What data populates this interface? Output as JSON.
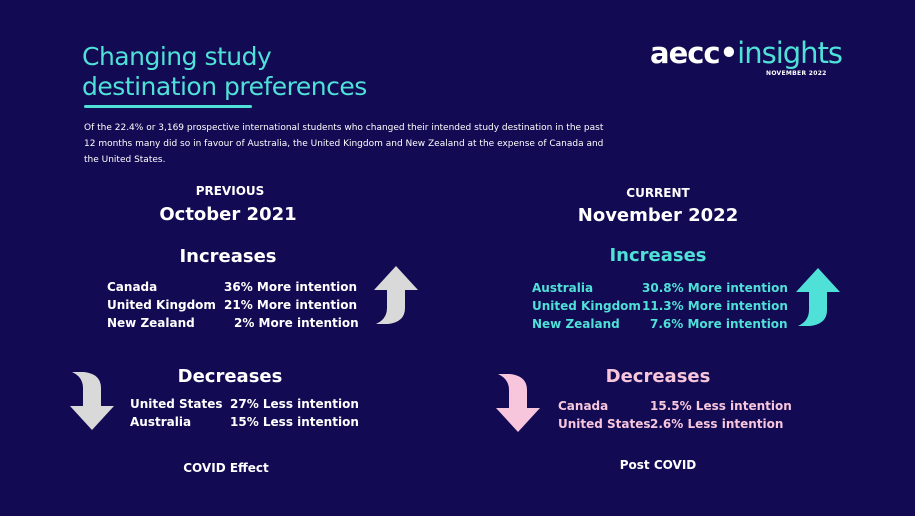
{
  "header": {
    "title_line1": "Changing study",
    "title_line2": "destination preferences",
    "intro": "Of the 22.4% or 3,169 prospective international students who changed their intended study destination in the past 12 months many did so in favour of Australia, the United Kingdom and New Zealand at the expense of Canada and the United States."
  },
  "logo": {
    "brand": "aecc",
    "product": "insights",
    "date": "NOVEMBER 2022"
  },
  "previous": {
    "label": "PREVIOUS",
    "date": "October 2021",
    "increases_heading": "Increases",
    "increases": [
      {
        "country": "Canada",
        "value": "36% More intention"
      },
      {
        "country": "United Kingdom",
        "value": "21% More intention"
      },
      {
        "country": "New Zealand",
        "value": "2% More intention"
      }
    ],
    "decreases_heading": "Decreases",
    "decreases": [
      {
        "country": "United States",
        "value": "27% Less intention"
      },
      {
        "country": "Australia",
        "value": "15% Less intention"
      }
    ],
    "footer": "COVID Effect"
  },
  "current": {
    "label": "CURRENT",
    "date": "November 2022",
    "increases_heading": "Increases",
    "increases": [
      {
        "country": "Australia",
        "value": "30.8% More intention"
      },
      {
        "country": "United Kingdom",
        "value": "11.3% More intention"
      },
      {
        "country": "New Zealand",
        "value": "7.6% More intention"
      }
    ],
    "decreases_heading": "Decreases",
    "decreases": [
      {
        "country": "Canada",
        "value": "15.5% Less intention"
      },
      {
        "country": "United States",
        "value": "2.6% Less intention"
      }
    ],
    "footer": "Post COVID"
  },
  "colors": {
    "background": "#120a52",
    "accent_teal": "#4fe0d8",
    "accent_pink": "#f7c6dd",
    "arrow_grey": "#d9d9d9"
  },
  "icons": [
    "arrow-up-icon",
    "arrow-down-icon"
  ]
}
